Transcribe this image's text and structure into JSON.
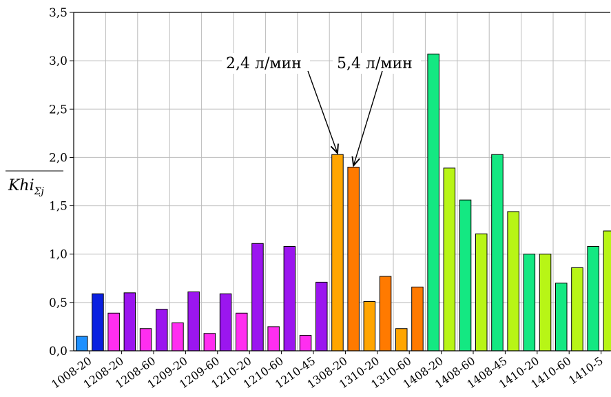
{
  "chart_data": {
    "type": "bar",
    "ylabel": "Khi",
    "ylabel_subscript": "Σj",
    "ylim": [
      0,
      3.5
    ],
    "yticks": [
      "0,0",
      "0,5",
      "1,0",
      "1,5",
      "2,0",
      "2,5",
      "3,0",
      "3,5"
    ],
    "grid": true,
    "xtick_labels": [
      "1008-20",
      "1208-20",
      "1208-60",
      "1209-20",
      "1209-60",
      "1210-20",
      "1210-60",
      "1210-45",
      "1308-20",
      "1310-20",
      "1310-60",
      "1408-20",
      "1408-60",
      "1408-45",
      "1410-20",
      "1410-60",
      "1410-5"
    ],
    "bars": [
      {
        "value": 0.15,
        "color": "#1e90ff"
      },
      {
        "value": 0.59,
        "color": "#0a20e0"
      },
      {
        "value": 0.39,
        "color": "#ff2ef0"
      },
      {
        "value": 0.6,
        "color": "#9b16ef"
      },
      {
        "value": 0.23,
        "color": "#ff2ef0"
      },
      {
        "value": 0.43,
        "color": "#9b16ef"
      },
      {
        "value": 0.29,
        "color": "#ff2ef0"
      },
      {
        "value": 0.61,
        "color": "#9b16ef"
      },
      {
        "value": 0.18,
        "color": "#ff2ef0"
      },
      {
        "value": 0.59,
        "color": "#9b16ef"
      },
      {
        "value": 0.39,
        "color": "#ff2ef0"
      },
      {
        "value": 1.11,
        "color": "#9b16ef"
      },
      {
        "value": 0.25,
        "color": "#ff2ef0"
      },
      {
        "value": 1.08,
        "color": "#9b16ef"
      },
      {
        "value": 0.16,
        "color": "#ff2ef0"
      },
      {
        "value": 0.71,
        "color": "#9b16ef"
      },
      {
        "value": 2.03,
        "color": "#ffa500"
      },
      {
        "value": 1.9,
        "color": "#ff7a00"
      },
      {
        "value": 0.51,
        "color": "#ffa500"
      },
      {
        "value": 0.77,
        "color": "#ff7a00"
      },
      {
        "value": 0.23,
        "color": "#ffa500"
      },
      {
        "value": 0.66,
        "color": "#ff7a00"
      },
      {
        "value": 3.07,
        "color": "#14e882"
      },
      {
        "value": 1.89,
        "color": "#b8f516"
      },
      {
        "value": 1.56,
        "color": "#14e882"
      },
      {
        "value": 1.21,
        "color": "#b8f516"
      },
      {
        "value": 2.03,
        "color": "#14e882"
      },
      {
        "value": 1.44,
        "color": "#b8f516"
      },
      {
        "value": 1.0,
        "color": "#14e882"
      },
      {
        "value": 1.0,
        "color": "#b8f516"
      },
      {
        "value": 0.7,
        "color": "#14e882"
      },
      {
        "value": 0.86,
        "color": "#b8f516"
      },
      {
        "value": 1.08,
        "color": "#14e882"
      },
      {
        "value": 1.24,
        "color": "#b8f516"
      }
    ],
    "annotations": [
      {
        "text": "2,4 л/мин",
        "target_bar": 16
      },
      {
        "text": "5,4 л/мин",
        "target_bar": 17
      }
    ]
  }
}
